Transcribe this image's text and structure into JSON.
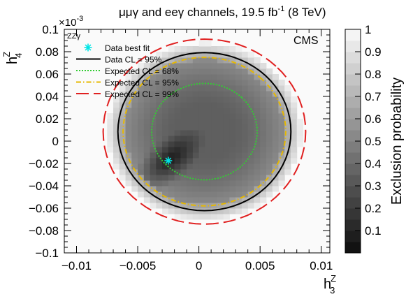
{
  "header": {
    "title_prefix": "μμγ and eeγ channels, 19.5 fb",
    "title_sup": "-1",
    "title_suffix": " (8 TeV)"
  },
  "axes": {
    "x_label_main": "h",
    "x_label_sup": "Z",
    "x_label_sub": "3",
    "y_label_main": "h",
    "y_label_sup": "Z",
    "y_label_sub": "4",
    "y_multiplier_base": "×10",
    "y_multiplier_exp": "-3",
    "colorbar_label": "Exclusion probability"
  },
  "labels": {
    "process": "ZZγ",
    "experiment": "CMS"
  },
  "legend": {
    "items": [
      {
        "label": "Data best fit",
        "style": "star",
        "color": "#00e5e5"
      },
      {
        "label": "Data CL = 95%",
        "style": "solid",
        "color": "#000000"
      },
      {
        "label": "Expected CL = 68%",
        "style": "dotted",
        "color": "#33cc33"
      },
      {
        "label": "Expected CL = 95%",
        "style": "dashdot",
        "color": "#e6b800"
      },
      {
        "label": "Expected CL = 99%",
        "style": "longdash",
        "color": "#e02020"
      }
    ]
  },
  "chart_data": {
    "type": "heatmap",
    "title": "μμγ and eeγ channels, 19.5 fb-1 (8 TeV)",
    "xlabel": "h3Z",
    "ylabel": "h4Z (×10^-3)",
    "zlabel": "Exclusion probability",
    "xlim": [
      -0.011,
      0.0107
    ],
    "ylim": [
      -0.1,
      0.1
    ],
    "zlim": [
      0,
      1
    ],
    "x_ticks": [
      -0.01,
      -0.005,
      0,
      0.005,
      0.01
    ],
    "x_tick_labels": [
      "−0.01",
      "−0.005",
      "0",
      "0.005",
      "0.01"
    ],
    "y_ticks": [
      -0.1,
      -0.08,
      -0.06,
      -0.04,
      -0.02,
      0,
      0.02,
      0.04,
      0.06,
      0.08,
      0.1
    ],
    "y_tick_labels": [
      "−0.1",
      "−0.08",
      "−0.06",
      "−0.04",
      "−0.02",
      "0",
      "0.02",
      "0.04",
      "0.06",
      "0.08",
      "0.1"
    ],
    "z_ticks": [
      0.1,
      0.2,
      0.3,
      0.4,
      0.5,
      0.6,
      0.7,
      0.8,
      0.9,
      1
    ],
    "z_tick_labels": [
      "0.1",
      "0.2",
      "0.3",
      "0.4",
      "0.5",
      "0.6",
      "0.7",
      "0.8",
      "0.9",
      "1"
    ],
    "best_fit": {
      "x": -0.0025,
      "y": -0.0175
    },
    "contours": [
      {
        "name": "Data CL = 95%",
        "center": [
          0.00045,
          0.0085
        ],
        "radius_h3": 0.0048,
        "radius_h4": 0.052,
        "color": "#000000",
        "style": "solid"
      },
      {
        "name": "Expected CL = 68%",
        "center": [
          0.00045,
          0.0085
        ],
        "radius_h3": 0.0029,
        "radius_h4": 0.032,
        "color": "#33cc33",
        "style": "dotted"
      },
      {
        "name": "Expected CL = 95%",
        "center": [
          0.00045,
          0.0085
        ],
        "radius_h3": 0.0045,
        "radius_h4": 0.049,
        "color": "#e6b800",
        "style": "dashdot"
      },
      {
        "name": "Expected CL = 99%",
        "center": [
          0.00045,
          0.0085
        ],
        "radius_h3": 0.0056,
        "radius_h4": 0.061,
        "color": "#e02020",
        "style": "longdash"
      }
    ],
    "heat_model": {
      "center": [
        0.00045,
        0.0085
      ],
      "bin_h3": 0.0005,
      "bin_h4": 0.005,
      "minimum": [
        -0.0025,
        -0.0175
      ],
      "min_value": 0.02,
      "core_value": 0.35,
      "rise": 0.4
    }
  }
}
